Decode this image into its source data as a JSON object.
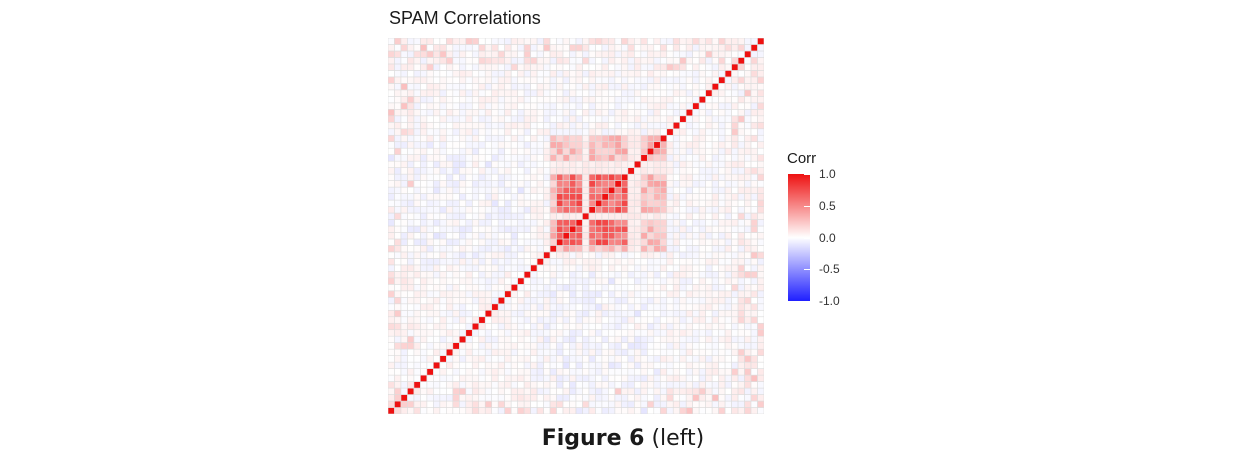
{
  "caption": {
    "bold": "Figure 6",
    "rest": " (left)"
  },
  "chart_data": {
    "type": "heatmap",
    "title": "SPAM Correlations",
    "xlabel": "",
    "ylabel": "",
    "n_variables": 58,
    "value_range": [
      -1.0,
      1.0
    ],
    "diagonal_value": 1.0,
    "notes": "Lower-left to upper-right diagonal of perfect correlation; a dense block of strong positive correlations (roughly 0.4-0.8) among variables 25-41; mostly weak values elsewhere.",
    "colorscale": {
      "low": "#1f1fff",
      "mid": "#ffffff",
      "high": "#ee1111"
    },
    "legend": {
      "title": "Corr",
      "ticks": [
        {
          "value": 1.0,
          "label": "1.0"
        },
        {
          "value": 0.5,
          "label": "0.5"
        },
        {
          "value": 0.0,
          "label": "0.0"
        },
        {
          "value": -0.5,
          "label": "-0.5"
        },
        {
          "value": -1.0,
          "label": "-1.0"
        }
      ],
      "placement": "right"
    },
    "blocks": [
      {
        "rows": [
          25,
          42
        ],
        "cols": [
          25,
          42
        ],
        "value": 0.55
      },
      {
        "rows": [
          25,
          42
        ],
        "cols": [
          25,
          42
        ],
        "value": 0.3
      }
    ],
    "grid": true
  },
  "colors": {
    "grid_line": "#dcdcdc",
    "background": "#ffffff"
  }
}
